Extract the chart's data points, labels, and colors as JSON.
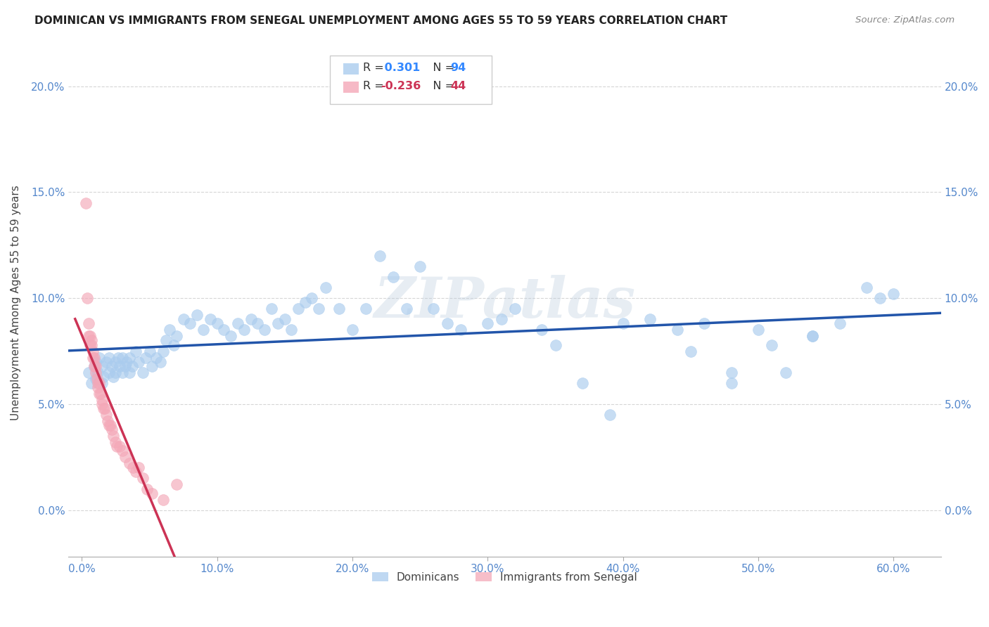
{
  "title": "DOMINICAN VS IMMIGRANTS FROM SENEGAL UNEMPLOYMENT AMONG AGES 55 TO 59 YEARS CORRELATION CHART",
  "source": "Source: ZipAtlas.com",
  "ylabel": "Unemployment Among Ages 55 to 59 years",
  "xlabel_ticks": [
    "0.0%",
    "10.0%",
    "20.0%",
    "30.0%",
    "40.0%",
    "50.0%",
    "60.0%"
  ],
  "xlabel_vals": [
    0.0,
    0.1,
    0.2,
    0.3,
    0.4,
    0.5,
    0.6
  ],
  "ylabel_ticks": [
    "0.0%",
    "5.0%",
    "10.0%",
    "15.0%",
    "20.0%"
  ],
  "ylabel_vals": [
    0.0,
    0.05,
    0.1,
    0.15,
    0.2
  ],
  "xlim": [
    -0.01,
    0.635
  ],
  "ylim": [
    -0.022,
    0.218
  ],
  "watermark": "ZIPatlas",
  "blue_color": "#aaccee",
  "pink_color": "#f4a8b8",
  "trendline_blue_color": "#2255aa",
  "trendline_pink_color": "#cc3355",
  "legend_r1_val": "0.301",
  "legend_r2_val": "-0.236",
  "legend_n1_val": "94",
  "legend_n2_val": "44",
  "dom_x": [
    0.005,
    0.007,
    0.009,
    0.01,
    0.01,
    0.012,
    0.013,
    0.015,
    0.015,
    0.016,
    0.018,
    0.02,
    0.02,
    0.022,
    0.023,
    0.025,
    0.025,
    0.027,
    0.028,
    0.03,
    0.03,
    0.032,
    0.033,
    0.035,
    0.035,
    0.037,
    0.04,
    0.042,
    0.045,
    0.047,
    0.05,
    0.052,
    0.055,
    0.058,
    0.06,
    0.062,
    0.065,
    0.068,
    0.07,
    0.075,
    0.08,
    0.085,
    0.09,
    0.095,
    0.1,
    0.105,
    0.11,
    0.115,
    0.12,
    0.125,
    0.13,
    0.135,
    0.14,
    0.145,
    0.15,
    0.155,
    0.16,
    0.165,
    0.17,
    0.175,
    0.18,
    0.19,
    0.2,
    0.21,
    0.22,
    0.23,
    0.24,
    0.25,
    0.26,
    0.27,
    0.28,
    0.3,
    0.31,
    0.32,
    0.34,
    0.35,
    0.37,
    0.39,
    0.4,
    0.42,
    0.44,
    0.46,
    0.48,
    0.5,
    0.52,
    0.54,
    0.56,
    0.58,
    0.59,
    0.6,
    0.45,
    0.48,
    0.51,
    0.54
  ],
  "dom_y": [
    0.065,
    0.06,
    0.068,
    0.062,
    0.07,
    0.065,
    0.072,
    0.06,
    0.068,
    0.063,
    0.07,
    0.065,
    0.072,
    0.068,
    0.063,
    0.065,
    0.07,
    0.072,
    0.068,
    0.065,
    0.072,
    0.068,
    0.07,
    0.065,
    0.072,
    0.068,
    0.075,
    0.07,
    0.065,
    0.072,
    0.075,
    0.068,
    0.072,
    0.07,
    0.075,
    0.08,
    0.085,
    0.078,
    0.082,
    0.09,
    0.088,
    0.092,
    0.085,
    0.09,
    0.088,
    0.085,
    0.082,
    0.088,
    0.085,
    0.09,
    0.088,
    0.085,
    0.095,
    0.088,
    0.09,
    0.085,
    0.095,
    0.098,
    0.1,
    0.095,
    0.105,
    0.095,
    0.085,
    0.095,
    0.12,
    0.11,
    0.095,
    0.115,
    0.095,
    0.088,
    0.085,
    0.088,
    0.09,
    0.095,
    0.085,
    0.078,
    0.06,
    0.045,
    0.088,
    0.09,
    0.085,
    0.088,
    0.065,
    0.085,
    0.065,
    0.082,
    0.088,
    0.105,
    0.1,
    0.102,
    0.075,
    0.06,
    0.078,
    0.082
  ],
  "sen_x": [
    0.003,
    0.004,
    0.005,
    0.005,
    0.006,
    0.006,
    0.007,
    0.007,
    0.008,
    0.008,
    0.009,
    0.009,
    0.01,
    0.01,
    0.011,
    0.012,
    0.012,
    0.013,
    0.013,
    0.014,
    0.015,
    0.015,
    0.016,
    0.017,
    0.018,
    0.019,
    0.02,
    0.021,
    0.022,
    0.023,
    0.025,
    0.026,
    0.028,
    0.03,
    0.032,
    0.035,
    0.038,
    0.04,
    0.042,
    0.045,
    0.048,
    0.052,
    0.06,
    0.07
  ],
  "sen_y": [
    0.145,
    0.1,
    0.088,
    0.082,
    0.082,
    0.078,
    0.08,
    0.078,
    0.075,
    0.072,
    0.072,
    0.068,
    0.068,
    0.065,
    0.062,
    0.06,
    0.058,
    0.06,
    0.055,
    0.055,
    0.052,
    0.05,
    0.048,
    0.048,
    0.045,
    0.042,
    0.04,
    0.04,
    0.038,
    0.035,
    0.032,
    0.03,
    0.03,
    0.028,
    0.025,
    0.022,
    0.02,
    0.018,
    0.02,
    0.015,
    0.01,
    0.008,
    0.005,
    0.012
  ]
}
